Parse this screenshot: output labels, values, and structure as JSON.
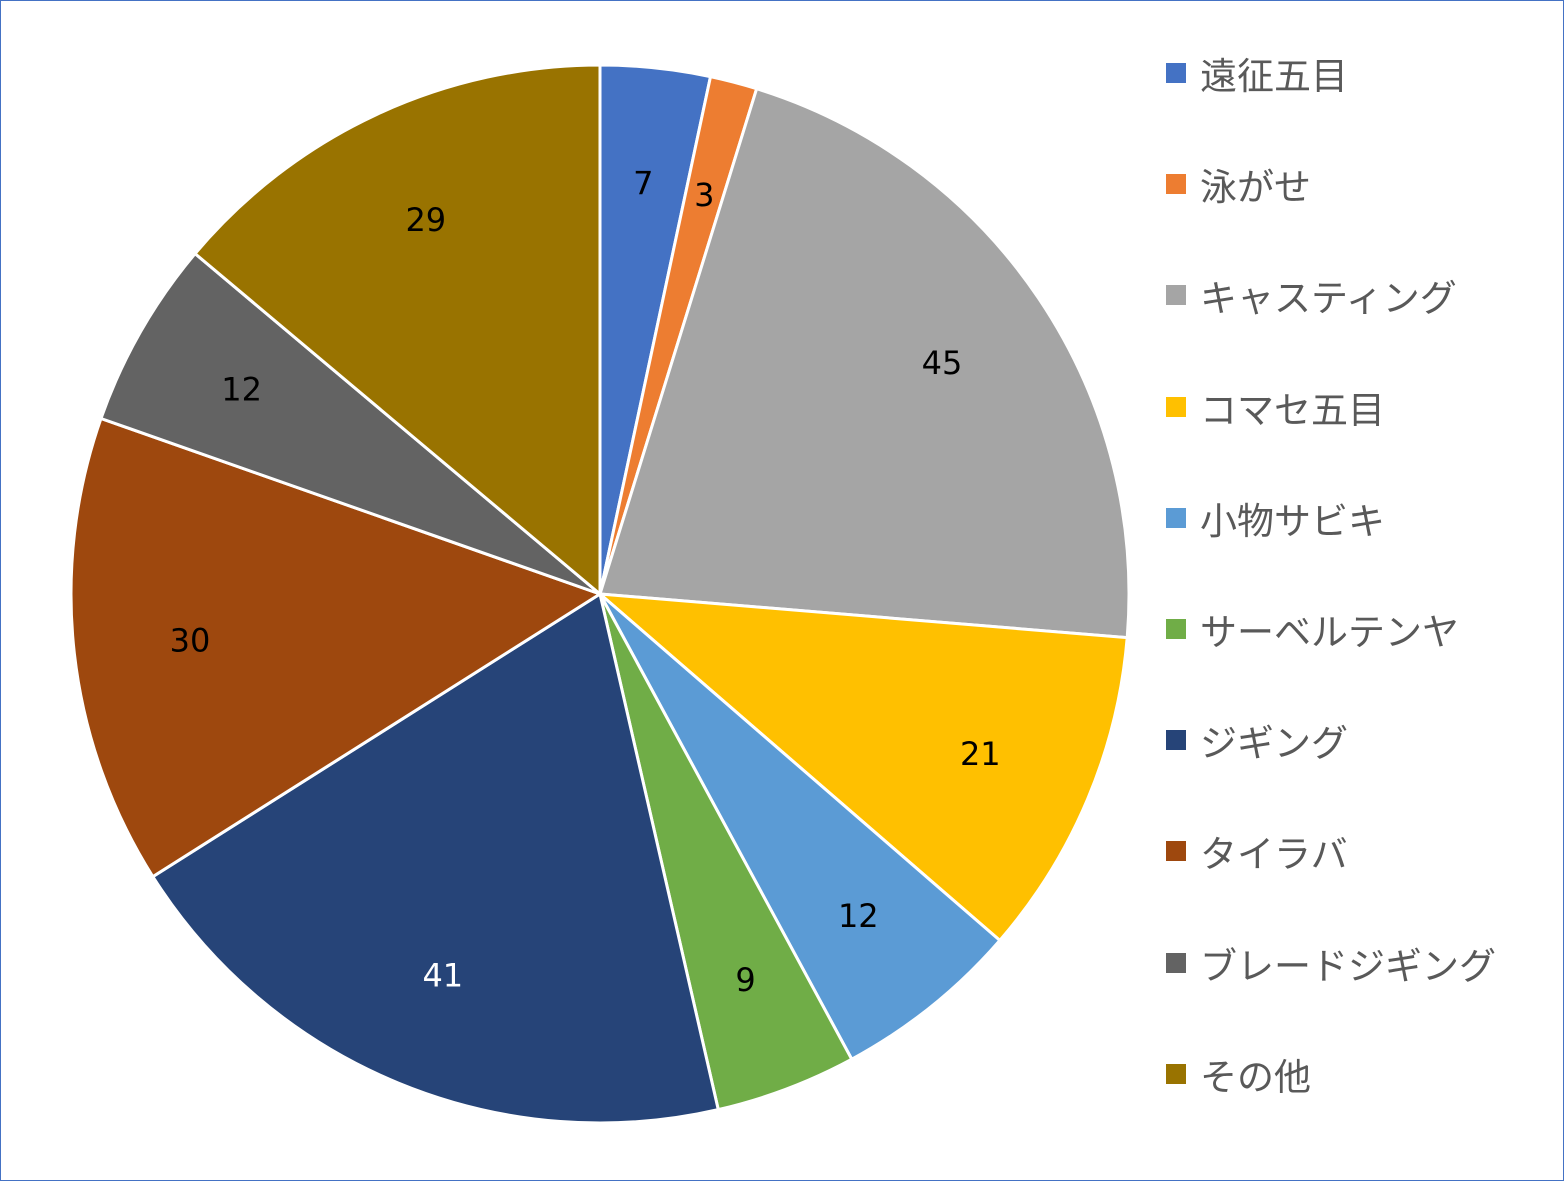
{
  "chart_data": {
    "type": "pie",
    "title": "",
    "categories": [
      "遠征五目",
      "泳がせ",
      "キャスティング",
      "コマセ五目",
      "小物サビキ",
      "サーベルテンヤ",
      "ジギング",
      "タイラバ",
      "ブレードジギング",
      "その他"
    ],
    "values": [
      7,
      3,
      45,
      21,
      12,
      9,
      41,
      30,
      12,
      29
    ],
    "colors": [
      "#4472C4",
      "#ED7D31",
      "#A5A5A5",
      "#FFC000",
      "#5B9BD5",
      "#70AD47",
      "#264478",
      "#9E480E",
      "#636363",
      "#997300"
    ],
    "label_colors": [
      "#000000",
      "#000000",
      "#000000",
      "#000000",
      "#000000",
      "#000000",
      "#ffffff",
      "#000000",
      "#000000",
      "#000000"
    ],
    "data_labels": [
      "7",
      "3",
      "45",
      "21",
      "12",
      "9",
      "41",
      "30",
      "12",
      "29"
    ],
    "legend": "right",
    "start_angle": "12 o'clock",
    "direction": "clockwise"
  }
}
